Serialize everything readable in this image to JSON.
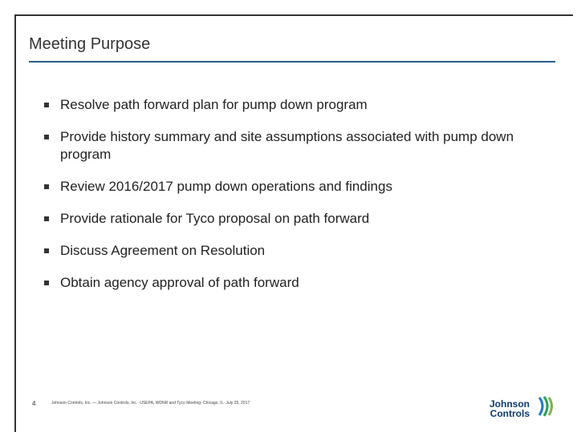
{
  "header": {
    "title": "Meeting Purpose"
  },
  "bullets": [
    "Resolve path forward plan for pump down program",
    "Provide history summary and site assumptions associated with pump down program",
    "Review 2016/2017 pump down operations and findings",
    "Provide rationale for Tyco proposal on path forward",
    "Discuss Agreement on Resolution",
    "Obtain agency approval of path forward"
  ],
  "footer": {
    "page": "4",
    "text": "Johnson Controls, Inc. — Johnson Controls, Inc. -USEPA, WDNR and Tyco Meeting- Chicago, IL- July 25, 2017"
  },
  "logo": {
    "line1": "Johnson",
    "line2": "Controls"
  }
}
